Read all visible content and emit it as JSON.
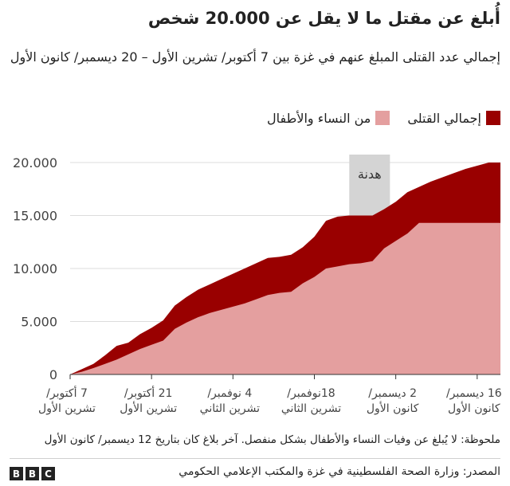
{
  "chart_data": {
    "type": "area",
    "title": "أُبلغ عن مقتل ما لا يقل عن 20.000 شخص",
    "subtitle": "إجمالي عدد القتلى المبلغ عنهم في غزة بين 7 أكتوبر/ تشرين الأول – 20 ديسمبر/ كانون الأول",
    "x": [
      0,
      2,
      4,
      6,
      8,
      10,
      12,
      14,
      16,
      18,
      20,
      22,
      24,
      26,
      28,
      30,
      32,
      34,
      36,
      38,
      40,
      42,
      44,
      46,
      48,
      50,
      52,
      54,
      56,
      58,
      60,
      62,
      64,
      66,
      68,
      70,
      72,
      74
    ],
    "series": [
      {
        "name": "إجمالي القتلى",
        "color": "#990000",
        "values": [
          0,
          500,
          1000,
          1800,
          2700,
          3000,
          3800,
          4400,
          5100,
          6500,
          7300,
          8000,
          8500,
          9000,
          9500,
          10000,
          10500,
          11000,
          11100,
          11300,
          12000,
          13000,
          14500,
          14900,
          15000,
          15000,
          15000,
          15600,
          16300,
          17200,
          17700,
          18200,
          18600,
          19000,
          19400,
          19700,
          20000,
          20000
        ]
      },
      {
        "name": "من النساء والأطفال",
        "color": "#e49f9f",
        "values": [
          0,
          250,
          600,
          1000,
          1400,
          1900,
          2400,
          2800,
          3200,
          4300,
          4900,
          5400,
          5800,
          6100,
          6400,
          6700,
          7100,
          7500,
          7700,
          7800,
          8600,
          9200,
          10000,
          10200,
          10400,
          10500,
          10700,
          11900,
          12600,
          13300,
          14300,
          14300,
          14300,
          14300,
          14300,
          14300,
          14300,
          14300
        ]
      }
    ],
    "ylim": [
      0,
      20000
    ],
    "xlim": [
      0,
      74
    ],
    "yticks": [
      {
        "value": 0,
        "label": "0"
      },
      {
        "value": 5000,
        "label": "5.000"
      },
      {
        "value": 10000,
        "label": "10.000"
      },
      {
        "value": 15000,
        "label": "15.000"
      },
      {
        "value": 20000,
        "label": "20.000"
      }
    ],
    "xticks": [
      {
        "value": 0,
        "line1": "7 أكتوبر/",
        "line2": "تشرين الأول"
      },
      {
        "value": 14,
        "line1": "21 أكتوبر/",
        "line2": "تشرين الأول"
      },
      {
        "value": 28,
        "line1": "4 نوفمبر/",
        "line2": "تشرين الثاني"
      },
      {
        "value": 42,
        "line1": "18نوفمبر/",
        "line2": "تشرين الثاني"
      },
      {
        "value": 56,
        "line1": "2 ديسمبر/",
        "line2": "كانون الأول"
      },
      {
        "value": 70,
        "line1": "16 ديسمبر/",
        "line2": "كانون الأول"
      }
    ],
    "annotations": [
      {
        "type": "span",
        "x_start": 48,
        "x_end": 55,
        "label": "هدنة",
        "color": "#d4d4d4"
      }
    ],
    "grid": true,
    "legend_position": "top-right"
  },
  "legend": [
    {
      "label": "إجمالي القتلى",
      "color": "#990000"
    },
    {
      "label": "من النساء والأطفال",
      "color": "#e49f9f"
    }
  ],
  "note": "ملحوظة: لا يُبلغ عن وفيات النساء والأطفال بشكل منفصل. آخر بلاغ كان بتاريخ 12 ديسمبر/ كانون الأول",
  "source": "المصدر: وزارة الصحة الفلسطينية في غزة والمكتب الإعلامي الحكومي",
  "brand": {
    "letters": [
      "B",
      "B",
      "C"
    ]
  }
}
